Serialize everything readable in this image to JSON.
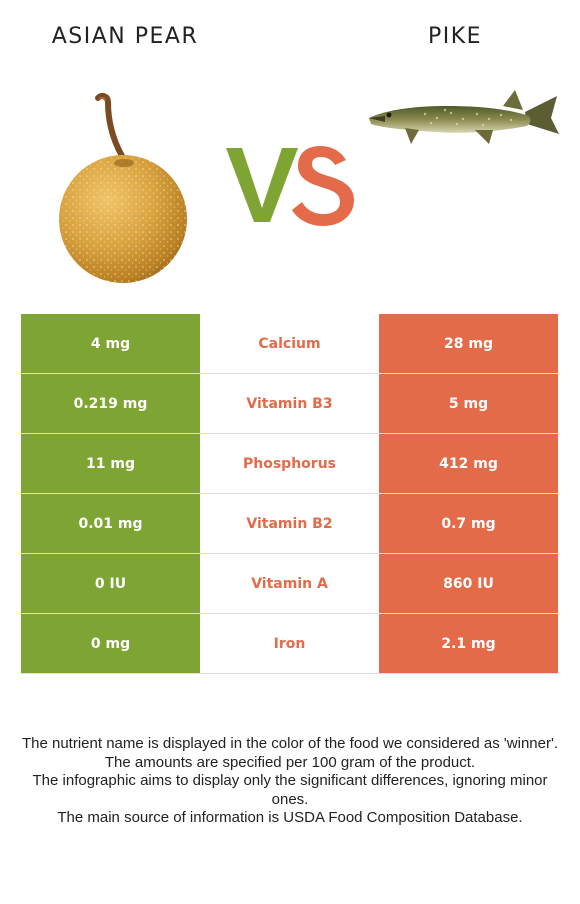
{
  "left_food": {
    "name": "ASIAN PEAR",
    "color": "#7ea534"
  },
  "right_food": {
    "name": "PIKE",
    "color": "#e36b4a"
  },
  "vs": {
    "v": "V",
    "s": "S"
  },
  "rows": [
    {
      "left": "4 mg",
      "nutrient": "Calcium",
      "right": "28 mg",
      "winner": "right"
    },
    {
      "left": "0.219 mg",
      "nutrient": "Vitamin B3",
      "right": "5 mg",
      "winner": "right"
    },
    {
      "left": "11 mg",
      "nutrient": "Phosphorus",
      "right": "412 mg",
      "winner": "right"
    },
    {
      "left": "0.01 mg",
      "nutrient": "Vitamin B2",
      "right": "0.7 mg",
      "winner": "right"
    },
    {
      "left": "0 IU",
      "nutrient": "Vitamin A",
      "right": "860 IU",
      "winner": "right"
    },
    {
      "left": "0 mg",
      "nutrient": "Iron",
      "right": "2.1 mg",
      "winner": "right"
    }
  ],
  "footnotes": [
    "The nutrient name is displayed in the color of the food we considered as 'winner'.",
    "The amounts are specified per 100 gram of the product.",
    "The infographic aims to display only the significant differences, ignoring minor ones.",
    "The main source of information is USDA Food Composition Database."
  ]
}
